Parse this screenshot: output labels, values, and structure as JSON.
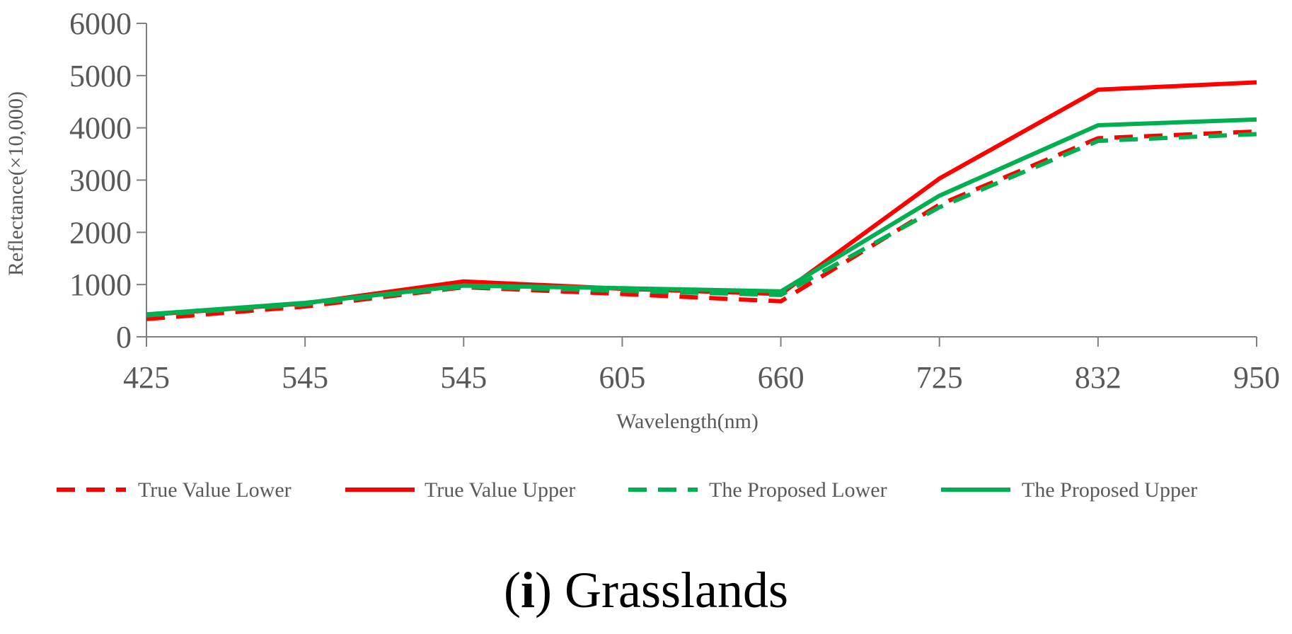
{
  "chart_data": {
    "type": "line",
    "title": "",
    "caption": {
      "open": "(",
      "letter": "i",
      "close": ")",
      "text": " Grasslands"
    },
    "xlabel": "Wavelength(nm)",
    "ylabel": "Reflectance(×10,000)",
    "categories": [
      "425",
      "545",
      "545",
      "605",
      "660",
      "725",
      "832",
      "950"
    ],
    "ylim": [
      0,
      6000
    ],
    "yticks": [
      0,
      1000,
      2000,
      3000,
      4000,
      5000,
      6000
    ],
    "grid": false,
    "legend_position": "bottom",
    "series": [
      {
        "name": "True Value Lower",
        "style": "dashed",
        "color": "#ff0000",
        "values": [
          340,
          580,
          950,
          820,
          680,
          2530,
          3800,
          3930
        ]
      },
      {
        "name": "True Value Upper",
        "style": "solid",
        "color": "#ff0000",
        "values": [
          420,
          640,
          1060,
          920,
          820,
          3030,
          4730,
          4870
        ]
      },
      {
        "name": "The Proposed Lower",
        "style": "dashed",
        "color": "#00b050",
        "values": [
          410,
          620,
          960,
          880,
          800,
          2480,
          3750,
          3880
        ]
      },
      {
        "name": "The Proposed Upper",
        "style": "solid",
        "color": "#00b050",
        "values": [
          430,
          650,
          980,
          930,
          870,
          2700,
          4050,
          4160
        ]
      }
    ]
  }
}
